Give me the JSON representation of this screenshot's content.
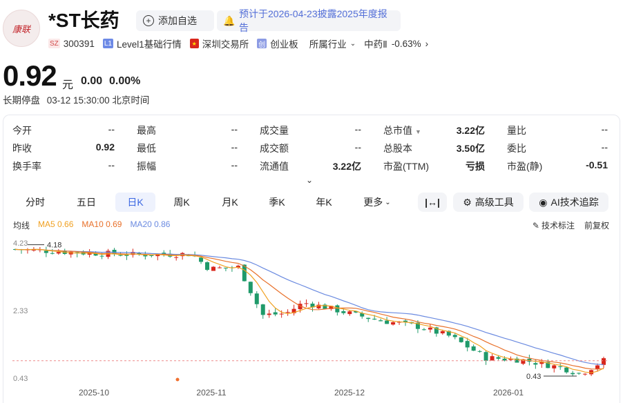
{
  "header": {
    "logo_text": "康联",
    "stock_name": "*ST长药",
    "watch_button": "添加自选",
    "notice": "预计于2026-04-23披露2025年度报告",
    "market_tag": "SZ",
    "code": "300391",
    "level_tag": "L1",
    "level_text": "Level1基础行情",
    "exchange": "深圳交易所",
    "board_tag": "创",
    "board": "创业板",
    "industry_label": "所属行业",
    "industry": "中药Ⅱ",
    "industry_change": "-0.63%"
  },
  "price": {
    "value": "0.92",
    "unit": "元",
    "change": "0.00",
    "change_pct": "0.00%",
    "status": "长期停盘",
    "time": "03-12 15:30:00 北京时间"
  },
  "quote": {
    "rows": [
      [
        {
          "label": "今开",
          "value": "--"
        },
        {
          "label": "最高",
          "value": "--"
        },
        {
          "label": "成交量",
          "value": "--"
        },
        {
          "label": "总市值",
          "value": "3.22亿"
        },
        {
          "label": "量比",
          "value": "--"
        }
      ],
      [
        {
          "label": "昨收",
          "value": "0.92"
        },
        {
          "label": "最低",
          "value": "--"
        },
        {
          "label": "成交额",
          "value": "--"
        },
        {
          "label": "总股本",
          "value": "3.50亿"
        },
        {
          "label": "委比",
          "value": "--"
        }
      ],
      [
        {
          "label": "换手率",
          "value": "--"
        },
        {
          "label": "振幅",
          "value": "--"
        },
        {
          "label": "流通值",
          "value": "3.22亿"
        },
        {
          "label": "市盈(TTM)",
          "value": "亏损"
        },
        {
          "label": "市盈(静)",
          "value": "-0.51"
        }
      ]
    ]
  },
  "tabs": [
    "分时",
    "五日",
    "日K",
    "周K",
    "月K",
    "季K",
    "年K",
    "更多"
  ],
  "active_tab": "日K",
  "tools": {
    "range_icon": "horizontal-range-icon",
    "advanced": "高级工具",
    "ai": "AI技术追踪"
  },
  "indicators": {
    "title": "均线",
    "ma5": "MA5 0.66",
    "ma10": "MA10 0.69",
    "ma20": "MA20 0.86",
    "tech_mark": "技术标注",
    "adjust": "前复权"
  },
  "colors": {
    "up": "#d9261c",
    "down": "#1f9a6a",
    "ma5": "#f0a020",
    "ma10": "#e8702a",
    "ma20": "#6a8ae0",
    "accent": "#3b67e2"
  },
  "chart_data": {
    "type": "candlestick",
    "y_ticks": [
      "4.23",
      "2.33",
      "0.43"
    ],
    "x_ticks": [
      "2025-10",
      "2025-11",
      "2025-12",
      "2026-01"
    ],
    "high_label": "4.18",
    "low_label": "0.43",
    "last_close": 0.92,
    "series": [
      {
        "name": "MA5",
        "value": 0.66
      },
      {
        "name": "MA10",
        "value": 0.69
      },
      {
        "name": "MA20",
        "value": 0.86
      }
    ]
  }
}
